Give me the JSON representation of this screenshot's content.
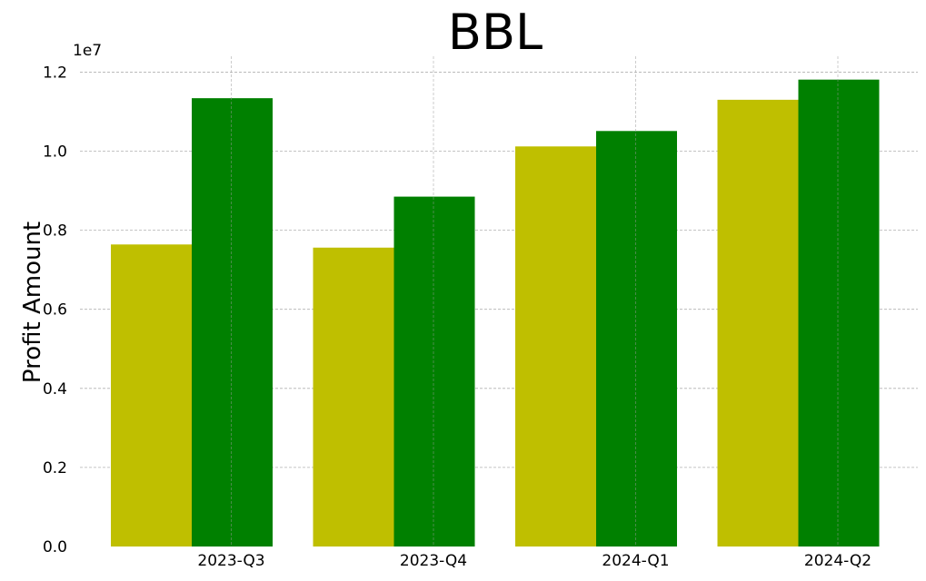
{
  "chart_data": {
    "type": "bar",
    "title": "BBL",
    "ylabel": "Profit Amount",
    "xlabel": "",
    "y_multiplier_label": "1e7",
    "categories": [
      "2023-Q3",
      "2023-Q4",
      "2024-Q1",
      "2024-Q2"
    ],
    "series": [
      {
        "values": [
          7640000,
          7560000,
          10120000,
          11300000
        ],
        "color": "#bfbf00"
      },
      {
        "values": [
          11340000,
          8850000,
          10510000,
          11810000
        ],
        "color": "#008000"
      }
    ],
    "ylim": [
      0,
      12400000
    ],
    "yticks": [
      0,
      2000000,
      4000000,
      6000000,
      8000000,
      10000000,
      12000000
    ],
    "ytick_labels": [
      "0.0",
      "0.2",
      "0.4",
      "0.6",
      "0.8",
      "1.0",
      "1.2"
    ],
    "grid": true
  }
}
